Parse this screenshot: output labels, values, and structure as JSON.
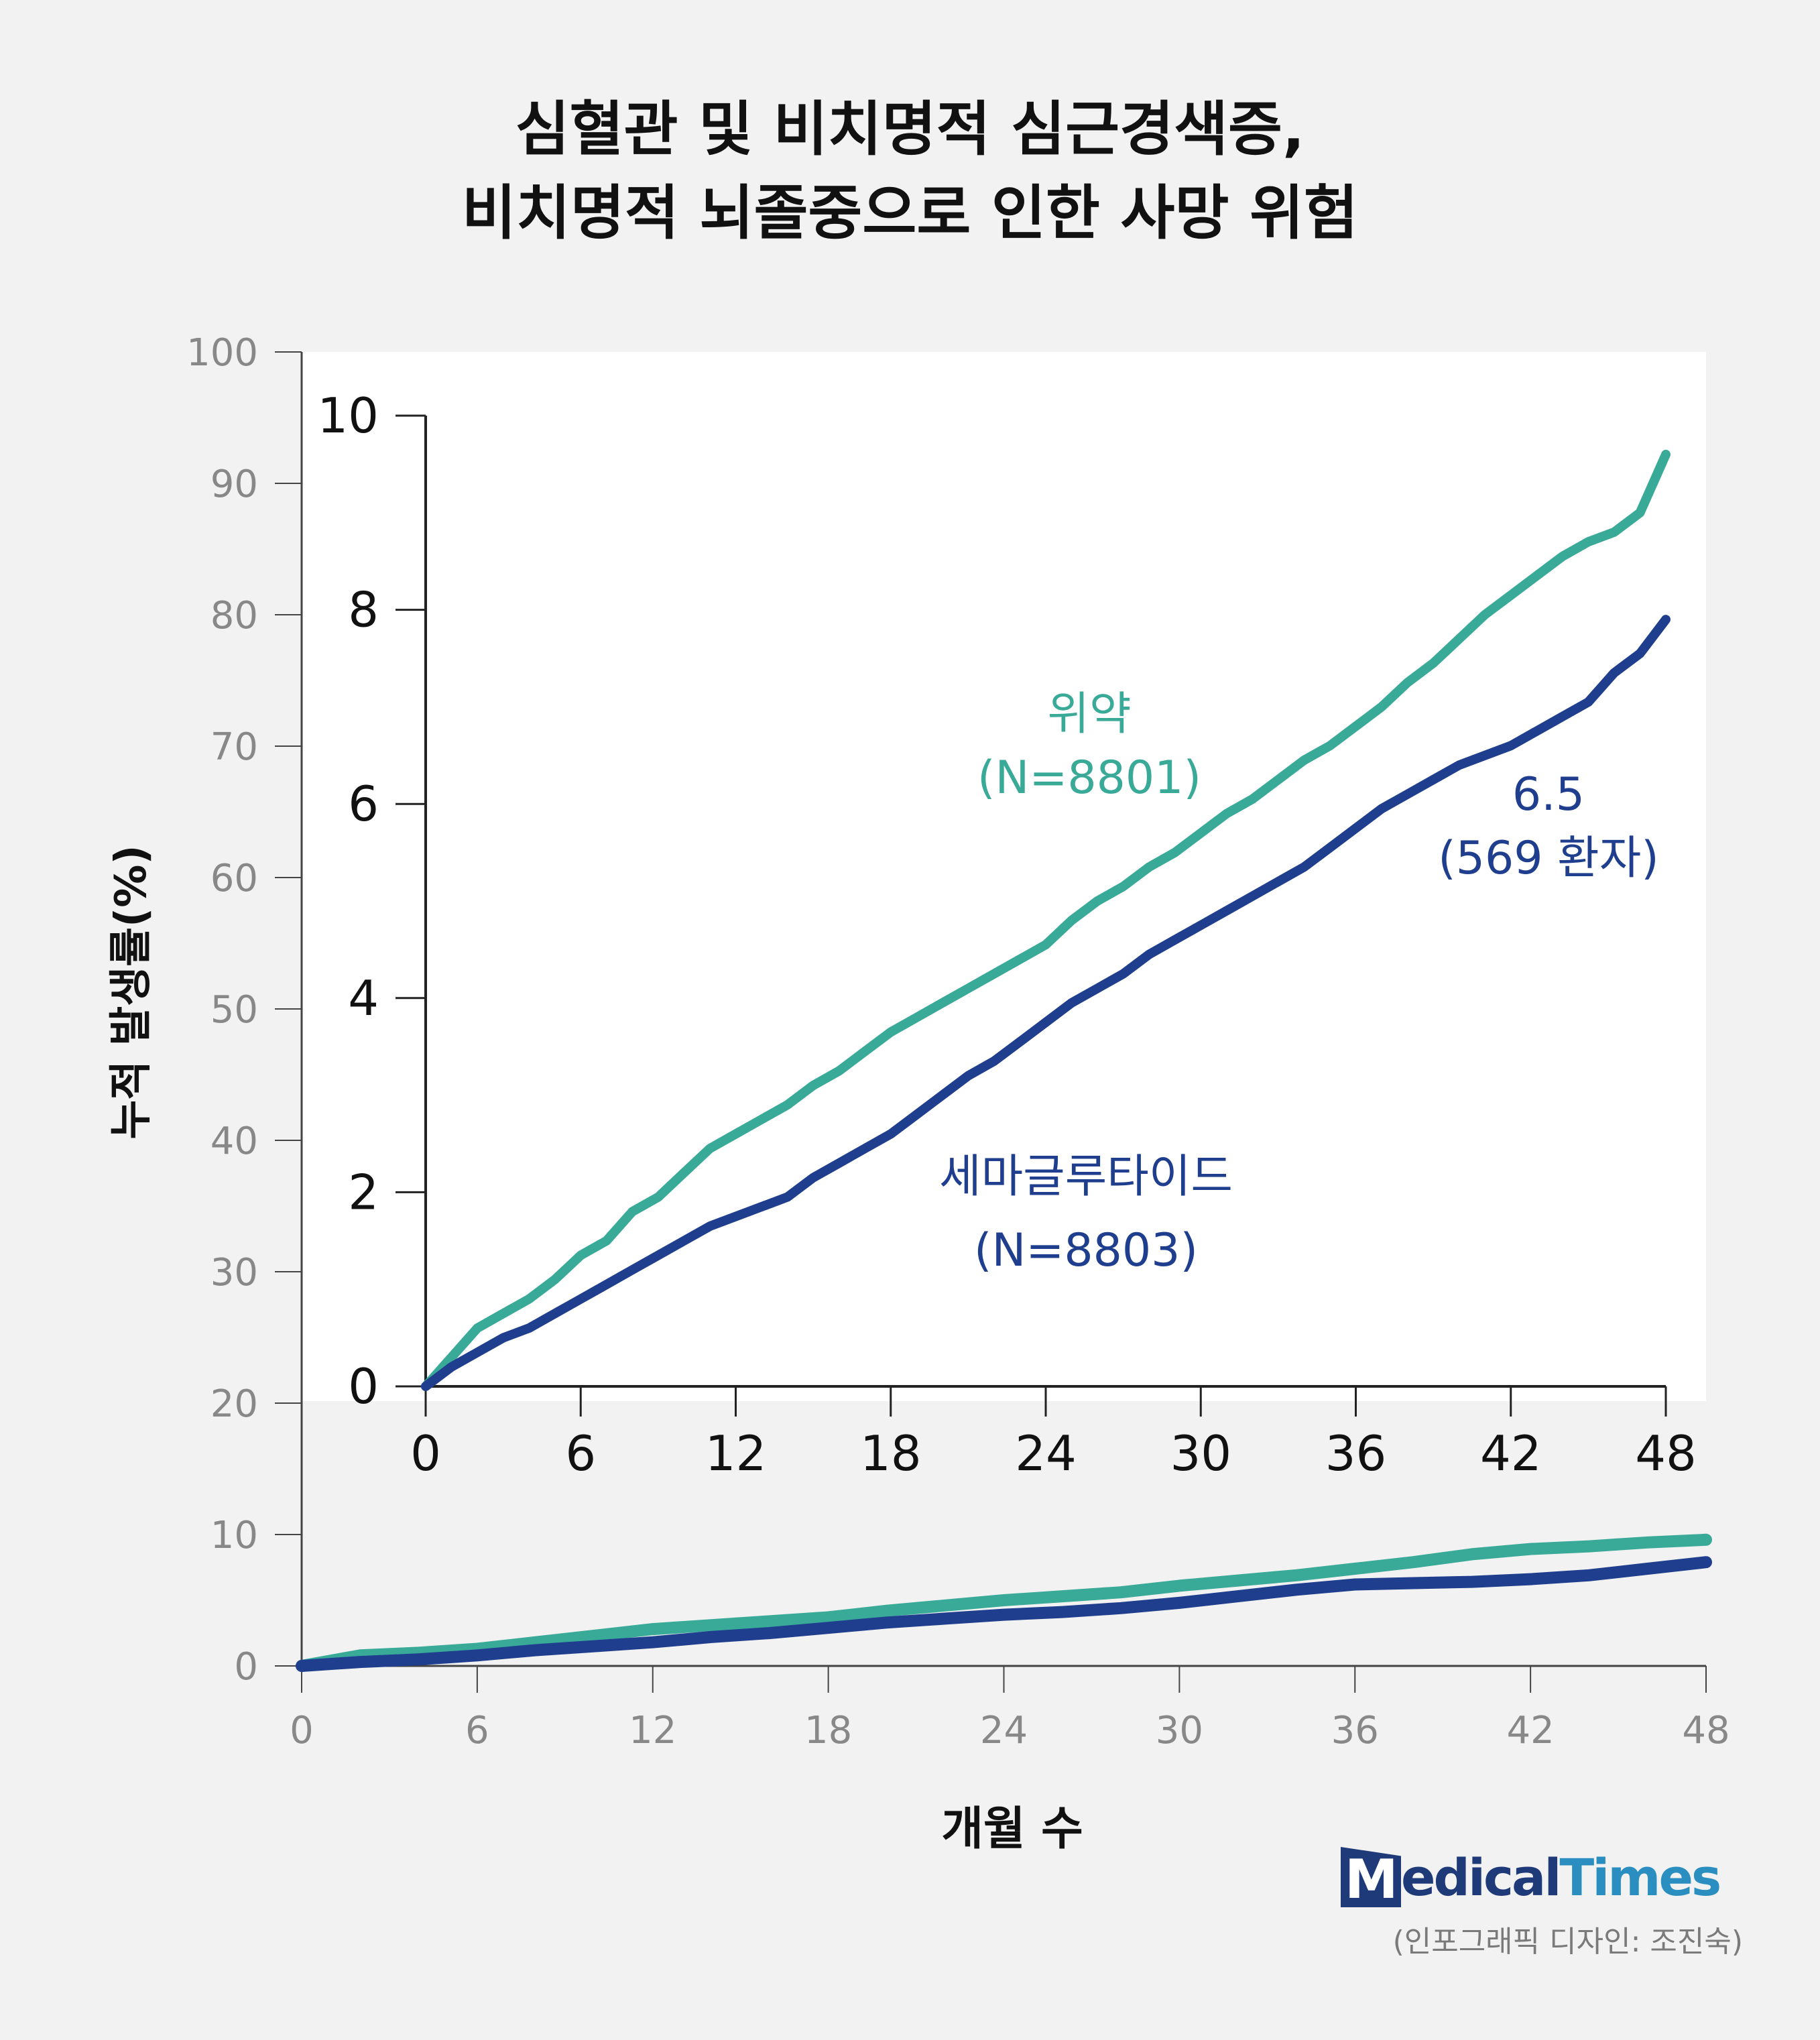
{
  "title": {
    "line1": "심혈관 및 비치명적 심근경색증,",
    "line2": "비치명적 뇌졸중으로 인한 사망 위험"
  },
  "y_axis_label": "누적 발생률(%)",
  "x_axis_label": "개월 수",
  "logo": {
    "mark": "M",
    "part1": "edical",
    "part2": "Times"
  },
  "credit": "(인포그래픽 디자인: 조진숙)",
  "colors": {
    "placebo": "#3aaa98",
    "semaglutide": "#1f3f8e",
    "background": "#f2f2f2",
    "axis": "#222222",
    "outer_tick": "#888888"
  },
  "chart_data": [
    {
      "id": "outer",
      "type": "line",
      "xlabel": "개월 수",
      "ylabel": "누적 발생률(%)",
      "xlim": [
        0,
        48
      ],
      "ylim": [
        0,
        100
      ],
      "x_ticks": [
        "0",
        "6",
        "12",
        "18",
        "24",
        "30",
        "36",
        "42",
        "48"
      ],
      "y_ticks": [
        "0",
        "10",
        "20",
        "30",
        "40",
        "50",
        "60",
        "70",
        "80",
        "90",
        "100"
      ],
      "series": [
        {
          "name": "위약",
          "x": [
            0,
            2,
            4,
            6,
            8,
            10,
            12,
            14,
            16,
            18,
            20,
            22,
            24,
            26,
            28,
            30,
            32,
            34,
            36,
            38,
            40,
            42,
            44,
            46,
            48
          ],
          "values": [
            0,
            0.8,
            1.0,
            1.3,
            1.8,
            2.3,
            2.8,
            3.1,
            3.4,
            3.7,
            4.2,
            4.6,
            5.0,
            5.3,
            5.6,
            6.1,
            6.5,
            6.9,
            7.4,
            7.9,
            8.5,
            8.9,
            9.1,
            9.4,
            9.6
          ]
        },
        {
          "name": "세마글루타이드",
          "x": [
            0,
            2,
            4,
            6,
            8,
            10,
            12,
            14,
            16,
            18,
            20,
            22,
            24,
            26,
            28,
            30,
            32,
            34,
            36,
            38,
            40,
            42,
            44,
            46,
            48
          ],
          "values": [
            0,
            0.3,
            0.5,
            0.8,
            1.2,
            1.5,
            1.8,
            2.2,
            2.5,
            2.9,
            3.3,
            3.6,
            3.9,
            4.1,
            4.4,
            4.8,
            5.3,
            5.8,
            6.2,
            6.3,
            6.4,
            6.6,
            6.9,
            7.4,
            7.9
          ]
        }
      ]
    },
    {
      "id": "inset",
      "type": "line",
      "xlim": [
        0,
        48
      ],
      "ylim": [
        0,
        10
      ],
      "x_ticks": [
        "0",
        "6",
        "12",
        "18",
        "24",
        "30",
        "36",
        "42",
        "48"
      ],
      "y_ticks": [
        "0",
        "2",
        "4",
        "6",
        "8",
        "10"
      ],
      "series": [
        {
          "name": "위약",
          "label": "위약",
          "sublabel": "(N=8801)",
          "x": [
            0,
            1,
            2,
            3,
            4,
            5,
            6,
            7,
            8,
            9,
            10,
            11,
            12,
            13,
            14,
            15,
            16,
            17,
            18,
            19,
            20,
            21,
            22,
            23,
            24,
            25,
            26,
            27,
            28,
            29,
            30,
            31,
            32,
            33,
            34,
            35,
            36,
            37,
            38,
            39,
            40,
            41,
            42,
            43,
            44,
            45,
            46,
            47,
            48
          ],
          "values": [
            0,
            0.3,
            0.6,
            0.75,
            0.9,
            1.1,
            1.35,
            1.5,
            1.8,
            1.95,
            2.2,
            2.45,
            2.6,
            2.75,
            2.9,
            3.1,
            3.25,
            3.45,
            3.65,
            3.8,
            3.95,
            4.1,
            4.25,
            4.4,
            4.55,
            4.8,
            5.0,
            5.15,
            5.35,
            5.5,
            5.7,
            5.9,
            6.05,
            6.25,
            6.45,
            6.6,
            6.8,
            7.0,
            7.25,
            7.45,
            7.7,
            7.95,
            8.15,
            8.35,
            8.55,
            8.7,
            8.8,
            9.0,
            9.6
          ]
        },
        {
          "name": "세마글루타이드",
          "label": "세마글루타이드",
          "sublabel": "(N=8803)",
          "x": [
            0,
            1,
            2,
            3,
            4,
            5,
            6,
            7,
            8,
            9,
            10,
            11,
            12,
            13,
            14,
            15,
            16,
            17,
            18,
            19,
            20,
            21,
            22,
            23,
            24,
            25,
            26,
            27,
            28,
            29,
            30,
            31,
            32,
            33,
            34,
            35,
            36,
            37,
            38,
            39,
            40,
            41,
            42,
            43,
            44,
            45,
            46,
            47,
            48
          ],
          "values": [
            0,
            0.2,
            0.35,
            0.5,
            0.6,
            0.75,
            0.9,
            1.05,
            1.2,
            1.35,
            1.5,
            1.65,
            1.75,
            1.85,
            1.95,
            2.15,
            2.3,
            2.45,
            2.6,
            2.8,
            3.0,
            3.2,
            3.35,
            3.55,
            3.75,
            3.95,
            4.1,
            4.25,
            4.45,
            4.6,
            4.75,
            4.9,
            5.05,
            5.2,
            5.35,
            5.55,
            5.75,
            5.95,
            6.1,
            6.25,
            6.4,
            6.5,
            6.6,
            6.75,
            6.9,
            7.05,
            7.35,
            7.55,
            7.9
          ]
        }
      ],
      "annotation": {
        "line1": "6.5",
        "line2": "(569 환자)"
      }
    }
  ]
}
